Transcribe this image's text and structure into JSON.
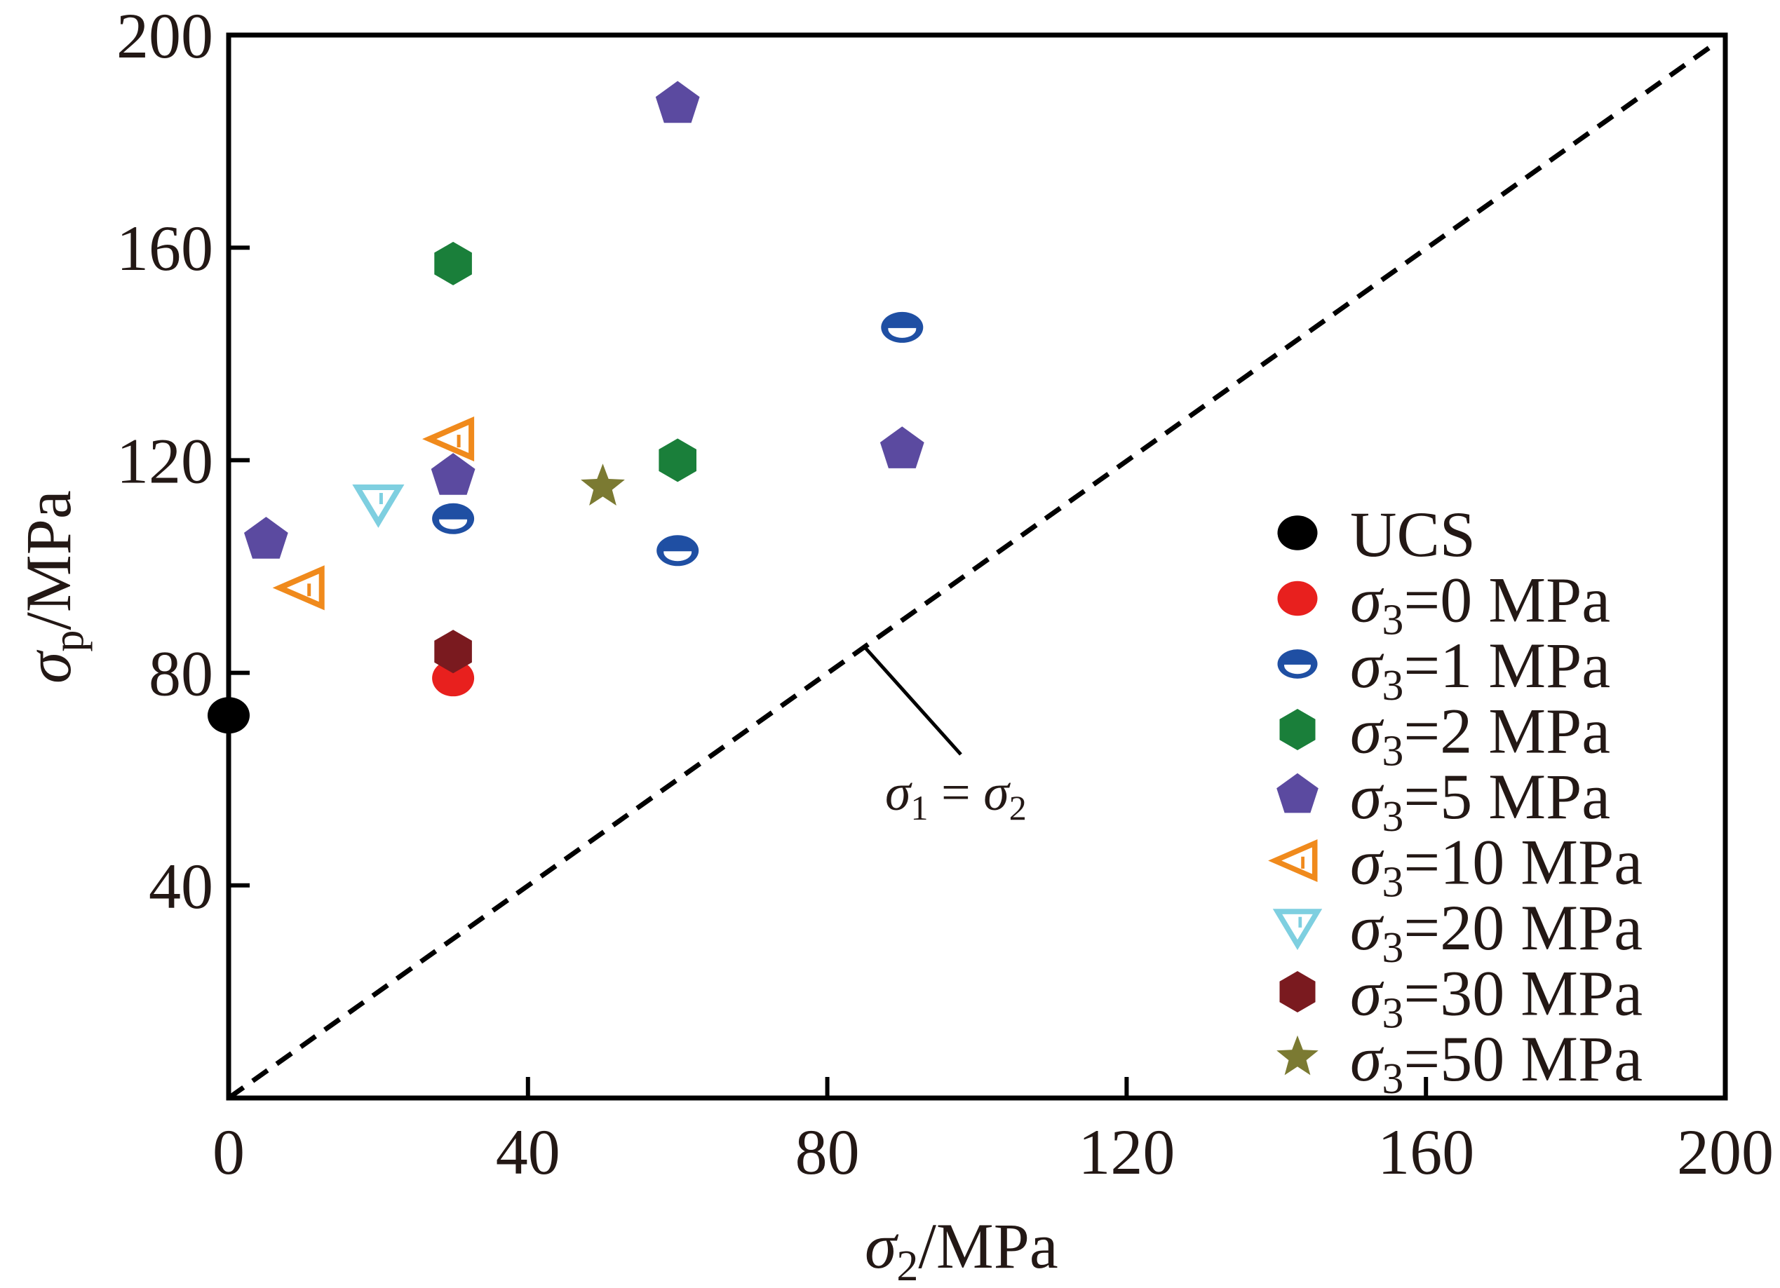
{
  "chart_data": {
    "type": "scatter",
    "title": "",
    "xlabel": {
      "symbol": "σ",
      "sub": "2",
      "unit": "/MPa"
    },
    "ylabel": {
      "symbol": "σ",
      "sub": "p",
      "unit": "/MPa"
    },
    "xlim": [
      0,
      200
    ],
    "ylim": [
      0,
      200
    ],
    "xticks": [
      0,
      40,
      80,
      120,
      160,
      200
    ],
    "yticks": [
      40,
      80,
      120,
      160,
      200
    ],
    "grid": false,
    "legend_position": "right-middle",
    "reference_line": {
      "label": {
        "s1": "σ",
        "sub1": "1",
        "eq": " = ",
        "s2": "σ",
        "sub2": "2"
      },
      "from": [
        0,
        0
      ],
      "to": [
        200,
        200
      ],
      "style": "dashed"
    },
    "series": [
      {
        "name": "UCS",
        "prefix": "",
        "sub": "",
        "value": "UCS",
        "marker": "circle",
        "color": "#000000",
        "points": [
          [
            0,
            72
          ]
        ]
      },
      {
        "name": "σ3=0 MPa",
        "prefix": "σ",
        "sub": "3",
        "value": "=0 MPa",
        "marker": "circle",
        "color": "#e8201e",
        "points": [
          [
            30,
            79
          ]
        ]
      },
      {
        "name": "σ3=1 MPa",
        "prefix": "σ",
        "sub": "3",
        "value": "=1 MPa",
        "marker": "circle-half",
        "color": "#1f4fa3",
        "points": [
          [
            30,
            109
          ],
          [
            60,
            103
          ],
          [
            90,
            145
          ]
        ]
      },
      {
        "name": "σ3=2 MPa",
        "prefix": "σ",
        "sub": "3",
        "value": "=2 MPa",
        "marker": "hexagon",
        "color": "#1a7f3a",
        "points": [
          [
            30,
            157
          ],
          [
            60,
            120
          ]
        ]
      },
      {
        "name": "σ3=5 MPa",
        "prefix": "σ",
        "sub": "3",
        "value": "=5 MPa",
        "marker": "pentagon",
        "color": "#5b4aa0",
        "points": [
          [
            5,
            105
          ],
          [
            30,
            117
          ],
          [
            60,
            187
          ],
          [
            90,
            122
          ]
        ]
      },
      {
        "name": "σ3=10 MPa",
        "prefix": "σ",
        "sub": "3",
        "value": "=10 MPa",
        "marker": "triangle-left",
        "color": "#f08a1c",
        "points": [
          [
            10,
            96
          ],
          [
            30,
            124
          ]
        ]
      },
      {
        "name": "σ3=20 MPa",
        "prefix": "σ",
        "sub": "3",
        "value": "=20 MPa",
        "marker": "triangle-down",
        "color": "#7ecfe0",
        "points": [
          [
            20,
            112
          ]
        ]
      },
      {
        "name": "σ3=30 MPa",
        "prefix": "σ",
        "sub": "3",
        "value": "=30 MPa",
        "marker": "hexagon",
        "color": "#7a1a1f",
        "points": [
          [
            30,
            84
          ]
        ]
      },
      {
        "name": "σ3=50 MPa",
        "prefix": "σ",
        "sub": "3",
        "value": "=50 MPa",
        "marker": "star",
        "color": "#7b7a32",
        "points": [
          [
            50,
            115
          ]
        ]
      }
    ]
  }
}
